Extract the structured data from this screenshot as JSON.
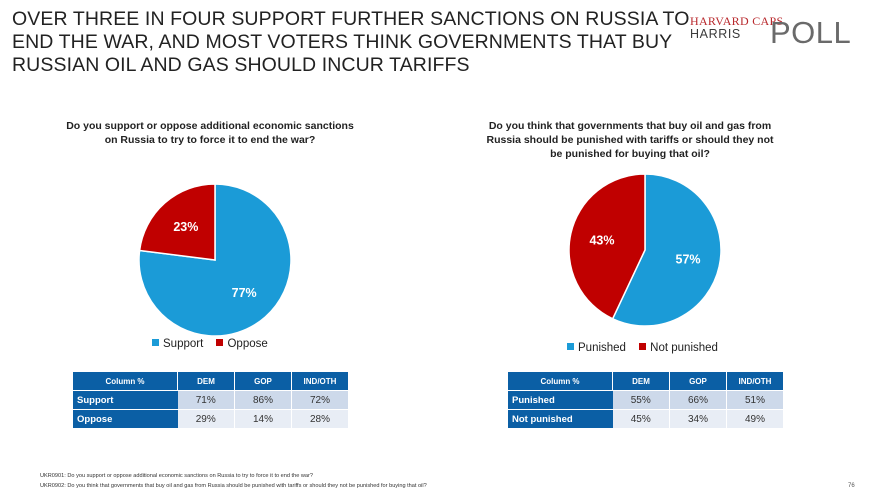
{
  "title_lines": [
    "OVER THREE IN FOUR SUPPORT FURTHER SANCTIONS ON RUSSIA TO",
    "END THE WAR, AND MOST VOTERS THINK GOVERNMENTS THAT BUY",
    "RUSSIAN OIL AND GAS SHOULD INCUR TARIFFS"
  ],
  "logo": {
    "line1": "HARVARD CAPS",
    "line2": "HARRIS",
    "line3": "POLL"
  },
  "colors": {
    "blue": "#1b9bd7",
    "red": "#c00000",
    "table_header": "#0b5fa5"
  },
  "chart_data": [
    {
      "type": "pie",
      "question_lines": [
        "Do you support or oppose additional economic sanctions",
        "on Russia to try to force it to end the war?"
      ],
      "categories": [
        "Support",
        "Oppose"
      ],
      "values": [
        77,
        23
      ],
      "labels": [
        "77%",
        "23%"
      ],
      "legend": "bottom"
    },
    {
      "type": "pie",
      "question_lines": [
        "Do you think that governments that buy oil and gas from",
        "Russia should be punished with tariffs or should they not",
        "be punished for buying that oil?"
      ],
      "categories": [
        "Punished",
        "Not punished"
      ],
      "values": [
        57,
        43
      ],
      "labels": [
        "57%",
        "43%"
      ],
      "legend": "bottom"
    }
  ],
  "tables": [
    {
      "headers": [
        "Column %",
        "DEM",
        "GOP",
        "IND/OTH"
      ],
      "rows": [
        {
          "label": "Support",
          "values": [
            "71%",
            "86%",
            "72%"
          ]
        },
        {
          "label": "Oppose",
          "values": [
            "29%",
            "14%",
            "28%"
          ]
        }
      ]
    },
    {
      "headers": [
        "Column %",
        "DEM",
        "GOP",
        "IND/OTH"
      ],
      "rows": [
        {
          "label": "Punished",
          "values": [
            "55%",
            "66%",
            "51%"
          ]
        },
        {
          "label": "Not punished",
          "values": [
            "45%",
            "34%",
            "49%"
          ]
        }
      ]
    }
  ],
  "footnotes": [
    "UKR0901: Do you support or oppose additional economic sanctions on Russia to try to force it to end the war?",
    "UKR0902: Do you think that governments that buy oil and gas from Russia should be punished with tariffs or should they not be punished for buying that oil?"
  ],
  "page_number": "76"
}
